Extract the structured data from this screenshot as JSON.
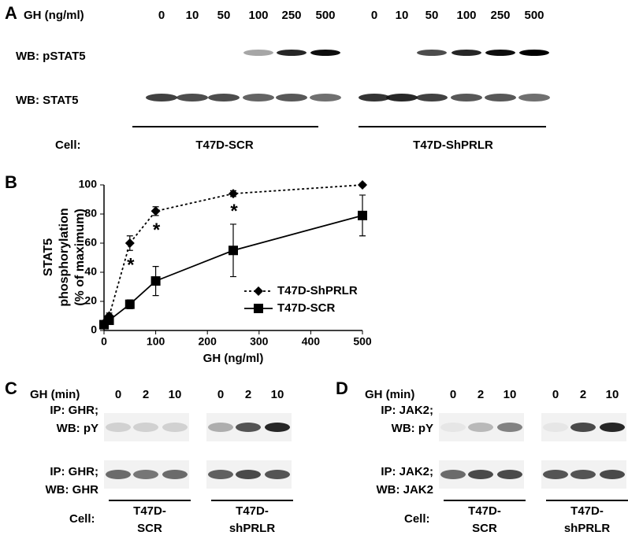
{
  "panel_a": {
    "label": "A",
    "header": "GH (ng/ml)",
    "doses": [
      [
        "0",
        "10",
        "50",
        "100",
        "250",
        "500"
      ],
      [
        "0",
        "10",
        "50",
        "100",
        "250",
        "500"
      ]
    ],
    "rows": [
      "WB: pSTAT5",
      "WB: STAT5"
    ],
    "cell_label": "Cell:",
    "groups": [
      "T47D-SCR",
      "T47D-ShPRLR"
    ]
  },
  "chart_data": {
    "type": "line",
    "label": "B",
    "ylabel": [
      "STAT5",
      "phosphorylation",
      "(% of maximum)"
    ],
    "xlabel": "GH (ng/ml)",
    "x": [
      0,
      10,
      50,
      100,
      250,
      500
    ],
    "series": [
      {
        "name": "T47D-ShPRLR",
        "color": "#000000",
        "marker": "diamond",
        "line_style": "dotted",
        "values": [
          5,
          10,
          60,
          82,
          94,
          100
        ],
        "errors": [
          1,
          2,
          5,
          3,
          2,
          1
        ]
      },
      {
        "name": "T47D-SCR",
        "color": "#000000",
        "marker": "square",
        "line_style": "solid",
        "values": [
          4,
          7,
          18,
          34,
          55,
          79
        ],
        "errors": [
          1,
          2,
          3,
          10,
          18,
          14
        ]
      }
    ],
    "annotations": [
      "*",
      "*",
      "*"
    ],
    "xlim": [
      0,
      500
    ],
    "xticks": [
      0,
      100,
      200,
      300,
      400,
      500
    ],
    "ylim": [
      0,
      100
    ],
    "yticks": [
      0,
      20,
      40,
      60,
      80,
      100
    ]
  },
  "panel_c": {
    "label": "C",
    "header": "GH (min)",
    "times": [
      [
        "0",
        "2",
        "10"
      ],
      [
        "0",
        "2",
        "10"
      ]
    ],
    "rows": [
      [
        "IP: GHR;",
        "WB: pY"
      ],
      [
        "IP: GHR;",
        "WB: GHR"
      ]
    ],
    "cell_label": "Cell:",
    "groups": [
      [
        "T47D-",
        "SCR"
      ],
      [
        "T47D-",
        "shPRLR"
      ]
    ]
  },
  "panel_d": {
    "label": "D",
    "header": "GH (min)",
    "times": [
      [
        "0",
        "2",
        "10"
      ],
      [
        "0",
        "2",
        "10"
      ]
    ],
    "rows": [
      [
        "IP: JAK2;",
        "WB: pY"
      ],
      [
        "IP: JAK2;",
        "WB: JAK2"
      ]
    ],
    "cell_label": "Cell:",
    "groups": [
      [
        "T47D-",
        "SCR"
      ],
      [
        "T47D-",
        "shPRLR"
      ]
    ]
  }
}
